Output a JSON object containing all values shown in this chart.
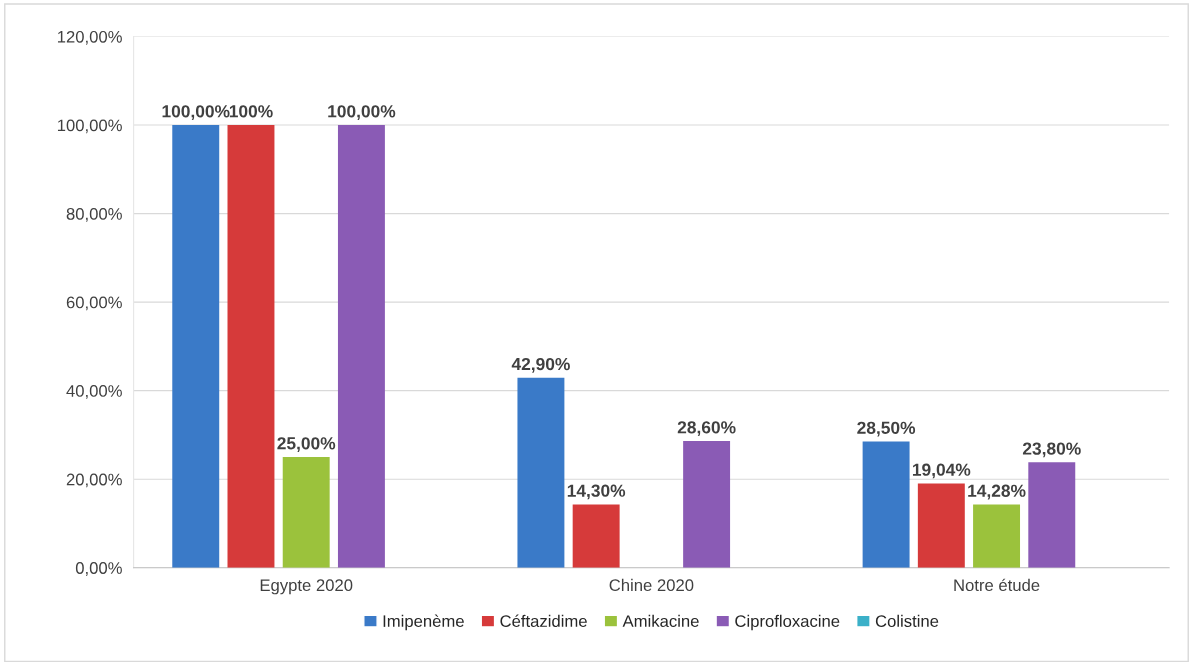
{
  "chart_data": {
    "type": "bar",
    "categories": [
      "Egypte 2020",
      "Chine 2020",
      "Notre étude"
    ],
    "series": [
      {
        "name": "Imipenème",
        "color": "#3a7ac8",
        "values": [
          100,
          42.9,
          28.5
        ],
        "value_labels": [
          "100,00%",
          "42,90%",
          "28,50%"
        ]
      },
      {
        "name": "Céftazidime",
        "color": "#d63a3a",
        "values": [
          100,
          14.3,
          19.04
        ],
        "value_labels": [
          "100%",
          "14,30%",
          "19,04%"
        ]
      },
      {
        "name": "Amikacine",
        "color": "#9bc23c",
        "values": [
          25,
          null,
          14.28
        ],
        "value_labels": [
          "25,00%",
          null,
          "14,28%"
        ]
      },
      {
        "name": "Ciprofloxacine",
        "color": "#8a5bb5",
        "values": [
          100,
          28.6,
          23.8
        ],
        "value_labels": [
          "100,00%",
          "28,60%",
          "23,80%"
        ]
      },
      {
        "name": "Colistine",
        "color": "#3bb0c8",
        "values": [
          null,
          null,
          null
        ]
      }
    ],
    "ylim": [
      0,
      120
    ],
    "yticks": [
      {
        "value": 0,
        "label": "0,00%"
      },
      {
        "value": 20,
        "label": "20,00%"
      },
      {
        "value": 40,
        "label": "40,00%"
      },
      {
        "value": 60,
        "label": "60,00%"
      },
      {
        "value": 80,
        "label": "80,00%"
      },
      {
        "value": 100,
        "label": "100,00%"
      },
      {
        "value": 120,
        "label": "120,00%"
      }
    ],
    "grid": "y",
    "legend": "bottom"
  }
}
